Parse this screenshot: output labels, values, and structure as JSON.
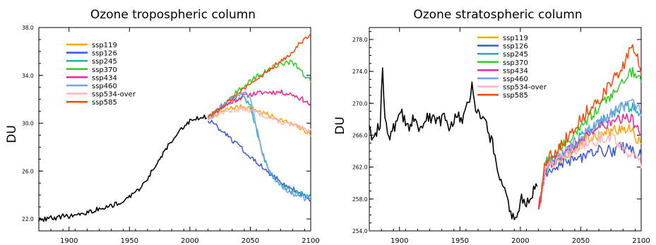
{
  "chart_data": [
    {
      "type": "line",
      "title": "Ozone tropospheric column",
      "xlabel": "",
      "ylabel": "DU",
      "xlim": [
        1875,
        2100
      ],
      "ylim": [
        21.0,
        38.0
      ],
      "y_ticks": [
        "22.0",
        "26.0",
        "30.0",
        "34.0",
        "38.0"
      ],
      "x_ticks": [
        "1900",
        "1950",
        "2000",
        "2050",
        "2100"
      ],
      "grid": false,
      "legend_position": "top-left",
      "historical": {
        "name": "",
        "color": "#000000",
        "x": [
          1875,
          1880,
          1885,
          1890,
          1895,
          1900,
          1905,
          1910,
          1915,
          1920,
          1925,
          1930,
          1935,
          1940,
          1945,
          1950,
          1955,
          1960,
          1965,
          1970,
          1975,
          1980,
          1985,
          1990,
          1995,
          2000,
          2005,
          2010,
          2014
        ],
        "y": [
          21.9,
          22.0,
          22.1,
          22.0,
          22.3,
          22.2,
          22.3,
          22.5,
          22.5,
          22.7,
          22.9,
          23.0,
          23.1,
          23.3,
          23.5,
          23.8,
          24.2,
          24.7,
          25.4,
          26.2,
          27.0,
          27.8,
          28.5,
          29.3,
          29.8,
          30.2,
          30.4,
          30.6,
          30.5
        ]
      },
      "series": [
        {
          "name": "ssp119",
          "color": "#ffa500",
          "x": [
            2015,
            2025,
            2035,
            2045,
            2055,
            2065,
            2075,
            2085,
            2095,
            2100
          ],
          "y": [
            30.4,
            30.9,
            31.3,
            31.4,
            31.1,
            30.7,
            30.3,
            29.9,
            29.4,
            29.0
          ]
        },
        {
          "name": "ssp126",
          "color": "#3858d8",
          "x": [
            2015,
            2025,
            2035,
            2045,
            2055,
            2065,
            2075,
            2085,
            2095,
            2100
          ],
          "y": [
            30.3,
            29.5,
            28.6,
            27.7,
            26.8,
            25.9,
            25.1,
            24.5,
            23.9,
            23.6
          ]
        },
        {
          "name": "ssp245",
          "color": "#20b2aa",
          "x": [
            2015,
            2025,
            2035,
            2045,
            2050,
            2055,
            2060,
            2065,
            2075,
            2085,
            2095,
            2100
          ],
          "y": [
            30.4,
            31.3,
            31.9,
            32.2,
            31.4,
            29.5,
            27.5,
            26.0,
            24.8,
            24.3,
            24.0,
            24.0
          ]
        },
        {
          "name": "ssp370",
          "color": "#33cc22",
          "x": [
            2015,
            2025,
            2035,
            2045,
            2055,
            2065,
            2075,
            2085,
            2090,
            2095,
            2100
          ],
          "y": [
            30.5,
            31.3,
            32.3,
            33.1,
            33.9,
            34.5,
            35.0,
            35.1,
            34.6,
            33.9,
            33.6
          ]
        },
        {
          "name": "ssp434",
          "color": "#e8259a",
          "x": [
            2015,
            2025,
            2035,
            2045,
            2055,
            2065,
            2075,
            2085,
            2095,
            2100
          ],
          "y": [
            30.5,
            31.2,
            31.8,
            32.3,
            32.5,
            32.6,
            32.6,
            32.4,
            31.9,
            31.5
          ]
        },
        {
          "name": "ssp460",
          "color": "#7a9cf0",
          "x": [
            2015,
            2025,
            2035,
            2045,
            2050,
            2055,
            2060,
            2065,
            2075,
            2085,
            2095,
            2100
          ],
          "y": [
            30.4,
            31.4,
            32.1,
            32.6,
            32.0,
            29.8,
            27.6,
            26.1,
            24.8,
            24.1,
            23.7,
            23.6
          ]
        },
        {
          "name": "ssp534-over",
          "color": "#ffb6c1",
          "x": [
            2015,
            2025,
            2035,
            2045,
            2055,
            2065,
            2075,
            2085,
            2095,
            2100
          ],
          "y": [
            30.4,
            30.8,
            31.1,
            31.2,
            30.9,
            30.5,
            30.1,
            29.8,
            29.5,
            29.4
          ]
        },
        {
          "name": "ssp585",
          "color": "#ff4500",
          "x": [
            2015,
            2025,
            2035,
            2045,
            2055,
            2065,
            2075,
            2085,
            2090,
            2095,
            2100
          ],
          "y": [
            30.6,
            31.3,
            32.1,
            32.9,
            33.6,
            34.4,
            35.2,
            36.0,
            36.6,
            37.1,
            37.4
          ]
        }
      ]
    },
    {
      "type": "line",
      "title": "Ozone stratospheric column",
      "xlabel": "",
      "ylabel": "DU",
      "xlim": [
        1875,
        2100
      ],
      "ylim": [
        254.0,
        279.5
      ],
      "y_ticks": [
        "254.0",
        "258.0",
        "262.0",
        "266.0",
        "270.0",
        "274.0",
        "278.0"
      ],
      "x_ticks": [
        "1900",
        "1950",
        "2000",
        "2050",
        "2100"
      ],
      "grid": false,
      "legend_position": "top-center",
      "historical": {
        "name": "",
        "color": "#000000",
        "x": [
          1875,
          1878,
          1881,
          1884,
          1886,
          1888,
          1892,
          1897,
          1902,
          1907,
          1912,
          1917,
          1922,
          1927,
          1932,
          1937,
          1942,
          1947,
          1952,
          1957,
          1960,
          1963,
          1967,
          1972,
          1977,
          1980,
          1983,
          1986,
          1989,
          1992,
          1995,
          1998,
          2001,
          2004,
          2008,
          2011,
          2014
        ],
        "y": [
          267.0,
          265.5,
          266.5,
          267.5,
          275.0,
          268.0,
          266.0,
          267.5,
          268.5,
          267.0,
          268.0,
          267.0,
          268.5,
          268.0,
          267.5,
          268.5,
          267.0,
          269.0,
          268.0,
          270.0,
          272.5,
          269.5,
          268.5,
          267.0,
          265.0,
          263.0,
          261.0,
          259.5,
          258.0,
          256.5,
          255.0,
          256.5,
          258.5,
          257.0,
          258.5,
          259.0,
          260.0
        ]
      },
      "series": [
        {
          "name": "ssp119",
          "color": "#ffa500",
          "x": [
            2015,
            2020,
            2025,
            2035,
            2045,
            2055,
            2065,
            2075,
            2085,
            2092,
            2100
          ],
          "y": [
            256.5,
            261.5,
            262.5,
            263.0,
            264.5,
            265.5,
            266.0,
            266.5,
            267.0,
            266.5,
            265.0
          ]
        },
        {
          "name": "ssp126",
          "color": "#3858d8",
          "x": [
            2015,
            2020,
            2025,
            2035,
            2045,
            2055,
            2065,
            2075,
            2085,
            2092,
            2100
          ],
          "y": [
            256.5,
            261.0,
            262.0,
            262.5,
            263.0,
            263.5,
            264.0,
            264.0,
            264.5,
            264.0,
            263.5
          ]
        },
        {
          "name": "ssp245",
          "color": "#20b2aa",
          "x": [
            2015,
            2020,
            2025,
            2035,
            2045,
            2055,
            2065,
            2075,
            2085,
            2092,
            2100
          ],
          "y": [
            256.5,
            261.5,
            263.0,
            263.5,
            265.0,
            266.5,
            267.5,
            268.5,
            269.5,
            269.5,
            269.0
          ]
        },
        {
          "name": "ssp370",
          "color": "#33cc22",
          "x": [
            2015,
            2020,
            2025,
            2035,
            2045,
            2055,
            2065,
            2075,
            2085,
            2092,
            2100
          ],
          "y": [
            256.5,
            262.0,
            263.5,
            264.5,
            266.0,
            268.0,
            269.5,
            271.0,
            273.0,
            274.0,
            273.0
          ]
        },
        {
          "name": "ssp434",
          "color": "#e8259a",
          "x": [
            2015,
            2020,
            2025,
            2035,
            2045,
            2055,
            2065,
            2075,
            2085,
            2092,
            2100
          ],
          "y": [
            256.5,
            261.5,
            262.5,
            263.5,
            264.5,
            266.0,
            267.0,
            267.5,
            268.0,
            268.0,
            266.5
          ]
        },
        {
          "name": "ssp460",
          "color": "#7a9cf0",
          "x": [
            2015,
            2020,
            2025,
            2035,
            2045,
            2055,
            2065,
            2075,
            2085,
            2092,
            2100
          ],
          "y": [
            256.5,
            261.5,
            262.5,
            263.5,
            265.0,
            266.5,
            267.5,
            268.5,
            269.5,
            270.0,
            269.0
          ]
        },
        {
          "name": "ssp534-over",
          "color": "#ffb6c1",
          "x": [
            2015,
            2020,
            2025,
            2035,
            2045,
            2055,
            2065,
            2075,
            2085,
            2092,
            2100
          ],
          "y": [
            256.5,
            261.0,
            262.5,
            263.0,
            264.0,
            265.0,
            265.5,
            266.0,
            264.5,
            263.5,
            262.5
          ]
        },
        {
          "name": "ssp585",
          "color": "#ff4500",
          "x": [
            2015,
            2020,
            2025,
            2035,
            2045,
            2055,
            2065,
            2075,
            2085,
            2092,
            2100
          ],
          "y": [
            256.5,
            262.0,
            263.5,
            265.0,
            267.0,
            269.0,
            270.5,
            272.5,
            274.5,
            277.0,
            274.5
          ]
        }
      ]
    }
  ]
}
